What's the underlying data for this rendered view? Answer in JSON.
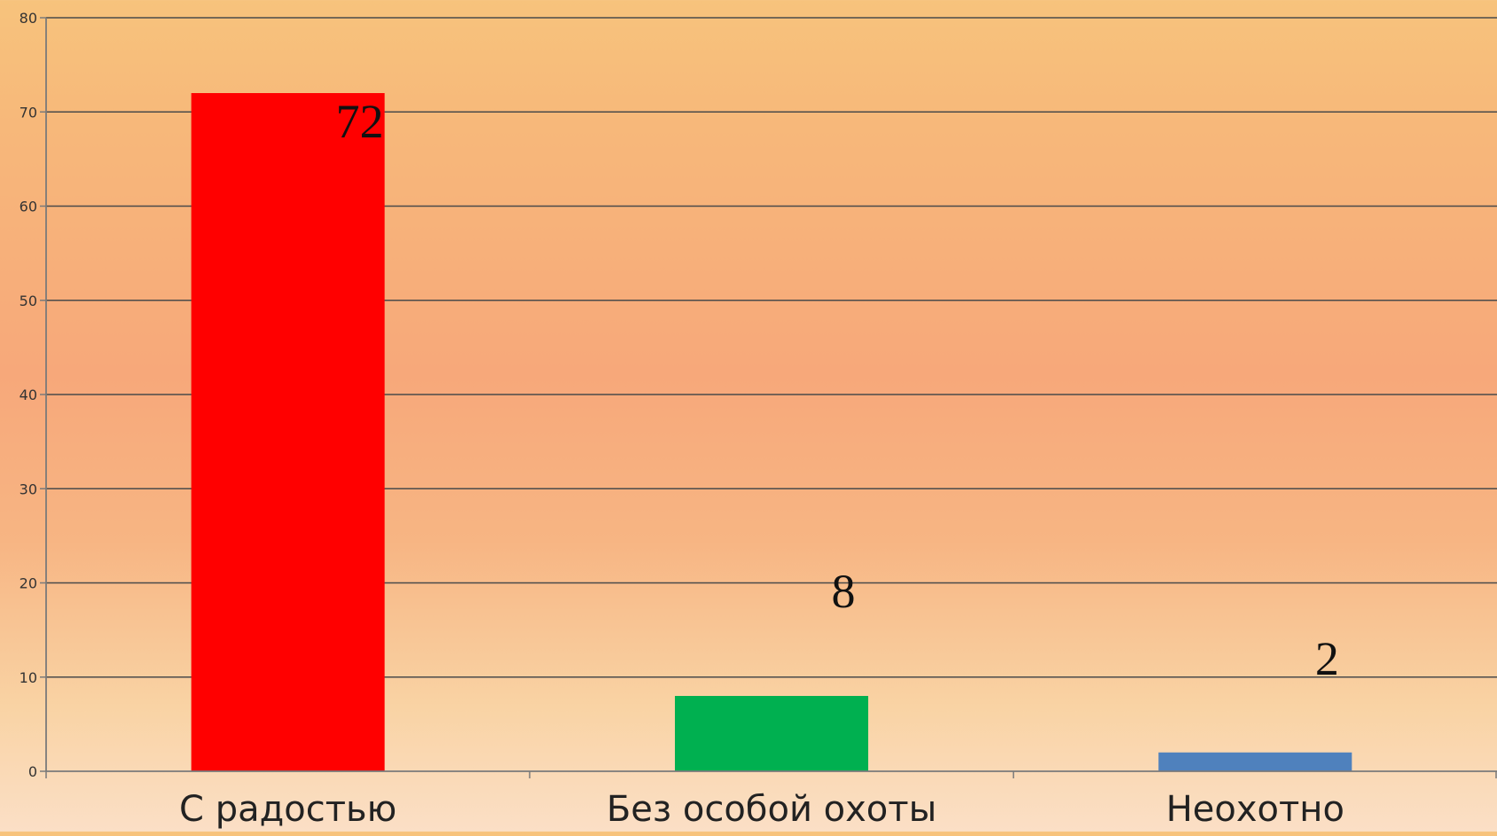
{
  "chart_data": {
    "type": "bar",
    "categories": [
      "С радостью",
      "Без особой охоты",
      "Неохотно"
    ],
    "values": [
      72,
      8,
      2
    ],
    "data_labels": [
      "72",
      "8",
      "2"
    ],
    "bar_colors": [
      "#ff0000",
      "#00b050",
      "#4f81bd"
    ],
    "title": "",
    "xlabel": "",
    "ylabel": "",
    "ylim": [
      0,
      80
    ],
    "yticks": [
      0,
      10,
      20,
      30,
      40,
      50,
      60,
      70,
      80
    ],
    "ytick_labels": [
      "0",
      "10",
      "20",
      "30",
      "40",
      "50",
      "60",
      "70",
      "80"
    ],
    "grid": true,
    "legend": "none",
    "gridline_color": "#4a4a4a",
    "axis_color": "#7a7a7a"
  }
}
